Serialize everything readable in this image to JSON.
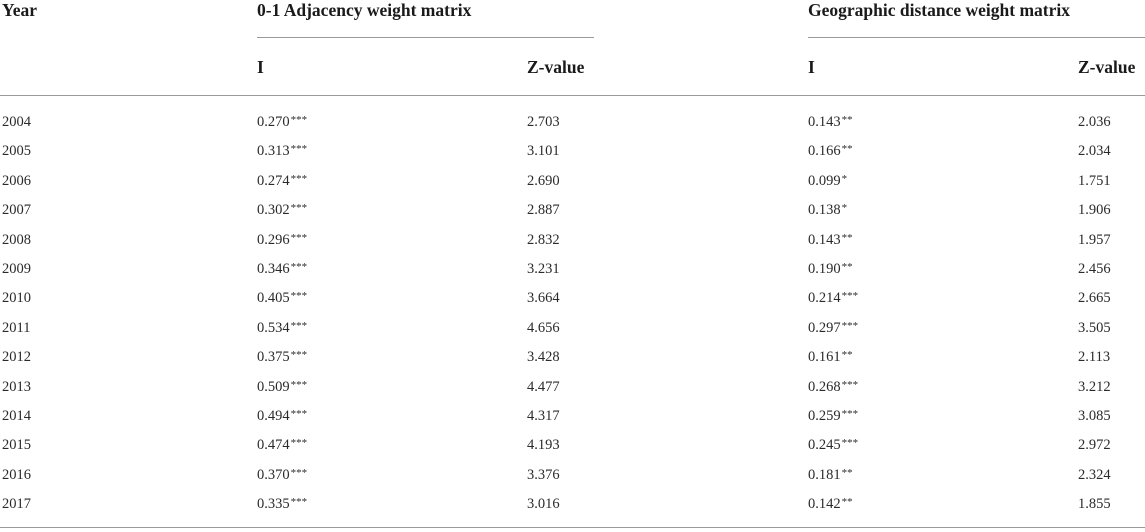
{
  "table": {
    "headers": {
      "year": "Year",
      "adjacency_group": "0-1 Adjacency weight matrix",
      "distance_group": "Geographic distance weight matrix",
      "adj_i": "I",
      "adj_z": "Z-value",
      "geo_i": "I",
      "geo_z": "Z-value"
    },
    "rows": [
      {
        "year": "2004",
        "adj_i": "0.270",
        "adj_i_sig": "***",
        "adj_z": "2.703",
        "geo_i": "0.143",
        "geo_i_sig": "**",
        "geo_z": "2.036"
      },
      {
        "year": "2005",
        "adj_i": "0.313",
        "adj_i_sig": "***",
        "adj_z": "3.101",
        "geo_i": "0.166",
        "geo_i_sig": "**",
        "geo_z": "2.034"
      },
      {
        "year": "2006",
        "adj_i": "0.274",
        "adj_i_sig": "***",
        "adj_z": "2.690",
        "geo_i": "0.099",
        "geo_i_sig": "*",
        "geo_z": "1.751"
      },
      {
        "year": "2007",
        "adj_i": "0.302",
        "adj_i_sig": "***",
        "adj_z": "2.887",
        "geo_i": "0.138",
        "geo_i_sig": "*",
        "geo_z": "1.906"
      },
      {
        "year": "2008",
        "adj_i": "0.296",
        "adj_i_sig": "***",
        "adj_z": "2.832",
        "geo_i": "0.143",
        "geo_i_sig": "**",
        "geo_z": "1.957"
      },
      {
        "year": "2009",
        "adj_i": "0.346",
        "adj_i_sig": "***",
        "adj_z": "3.231",
        "geo_i": "0.190",
        "geo_i_sig": "**",
        "geo_z": "2.456"
      },
      {
        "year": "2010",
        "adj_i": "0.405",
        "adj_i_sig": "***",
        "adj_z": "3.664",
        "geo_i": "0.214",
        "geo_i_sig": "***",
        "geo_z": "2.665"
      },
      {
        "year": "2011",
        "adj_i": "0.534",
        "adj_i_sig": "***",
        "adj_z": "4.656",
        "geo_i": "0.297",
        "geo_i_sig": "***",
        "geo_z": "3.505"
      },
      {
        "year": "2012",
        "adj_i": "0.375",
        "adj_i_sig": "***",
        "adj_z": "3.428",
        "geo_i": "0.161",
        "geo_i_sig": "**",
        "geo_z": "2.113"
      },
      {
        "year": "2013",
        "adj_i": "0.509",
        "adj_i_sig": "***",
        "adj_z": "4.477",
        "geo_i": "0.268",
        "geo_i_sig": "***",
        "geo_z": "3.212"
      },
      {
        "year": "2014",
        "adj_i": "0.494",
        "adj_i_sig": "***",
        "adj_z": "4.317",
        "geo_i": "0.259",
        "geo_i_sig": "***",
        "geo_z": "3.085"
      },
      {
        "year": "2015",
        "adj_i": "0.474",
        "adj_i_sig": "***",
        "adj_z": "4.193",
        "geo_i": "0.245",
        "geo_i_sig": "***",
        "geo_z": "2.972"
      },
      {
        "year": "2016",
        "adj_i": "0.370",
        "adj_i_sig": "***",
        "adj_z": "3.376",
        "geo_i": "0.181",
        "geo_i_sig": "**",
        "geo_z": "2.324"
      },
      {
        "year": "2017",
        "adj_i": "0.335",
        "adj_i_sig": "***",
        "adj_z": "3.016",
        "geo_i": "0.142",
        "geo_i_sig": "**",
        "geo_z": "1.855"
      }
    ]
  }
}
